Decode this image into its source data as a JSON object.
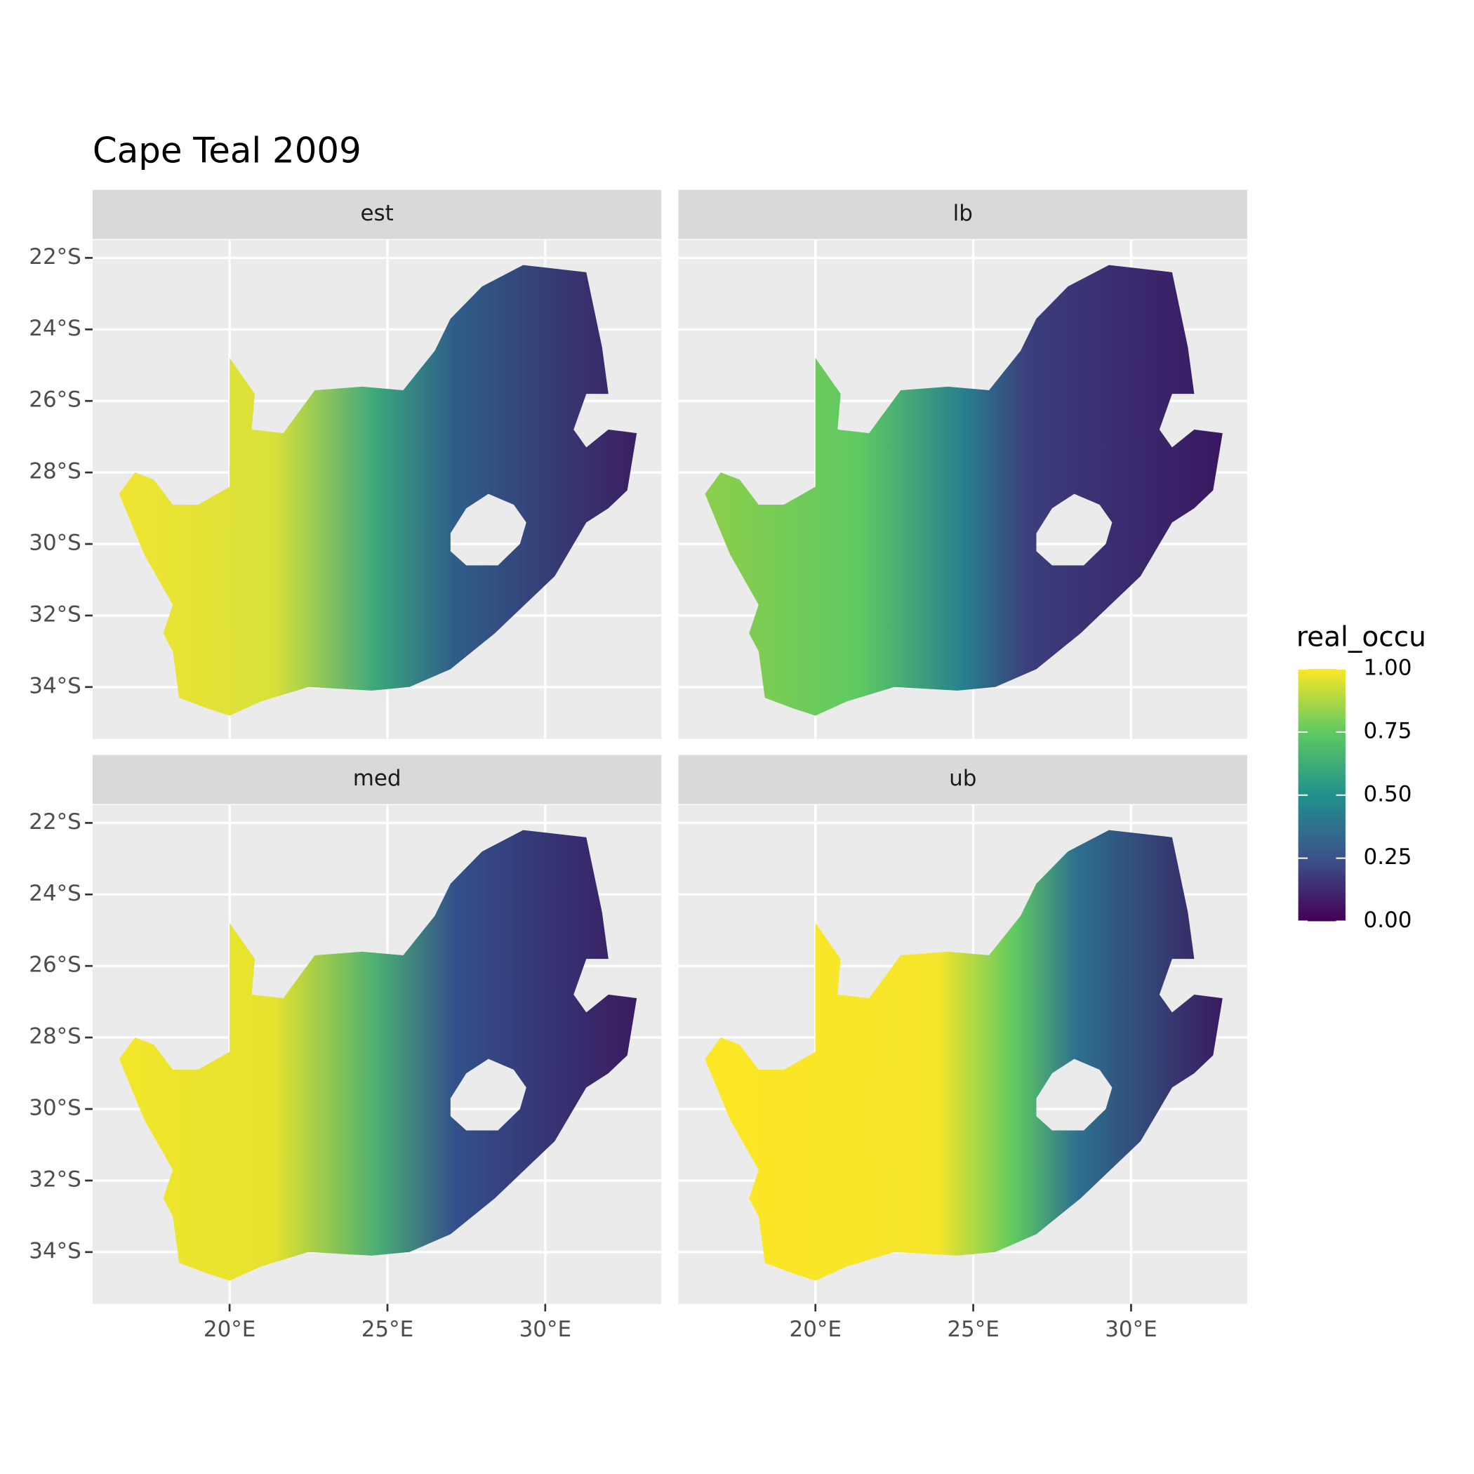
{
  "map": {
    "title": "Cape Teal 2009",
    "facets": [
      "est",
      "lb",
      "med",
      "ub"
    ],
    "xlim": [
      15.66,
      33.68
    ],
    "ylim": [
      -35.45,
      -21.5
    ],
    "xticks": [
      {
        "value": 20,
        "label": "20°E"
      },
      {
        "value": 25,
        "label": "25°E"
      },
      {
        "value": 30,
        "label": "30°E"
      }
    ],
    "yticks": [
      {
        "value": -22,
        "label": "22°S"
      },
      {
        "value": -24,
        "label": "24°S"
      },
      {
        "value": -26,
        "label": "26°S"
      },
      {
        "value": -28,
        "label": "28°S"
      },
      {
        "value": -30,
        "label": "30°S"
      },
      {
        "value": -32,
        "label": "32°S"
      },
      {
        "value": -34,
        "label": "34°S"
      }
    ],
    "legend": {
      "title": "real_occu",
      "lim": [
        0,
        1
      ],
      "ticks": [
        {
          "value": 0,
          "label": "0.00"
        },
        {
          "value": 0.25,
          "label": "0.25"
        },
        {
          "value": 0.5,
          "label": "0.50"
        },
        {
          "value": 0.75,
          "label": "0.75"
        },
        {
          "value": 1,
          "label": "1.00"
        }
      ]
    }
  }
}
